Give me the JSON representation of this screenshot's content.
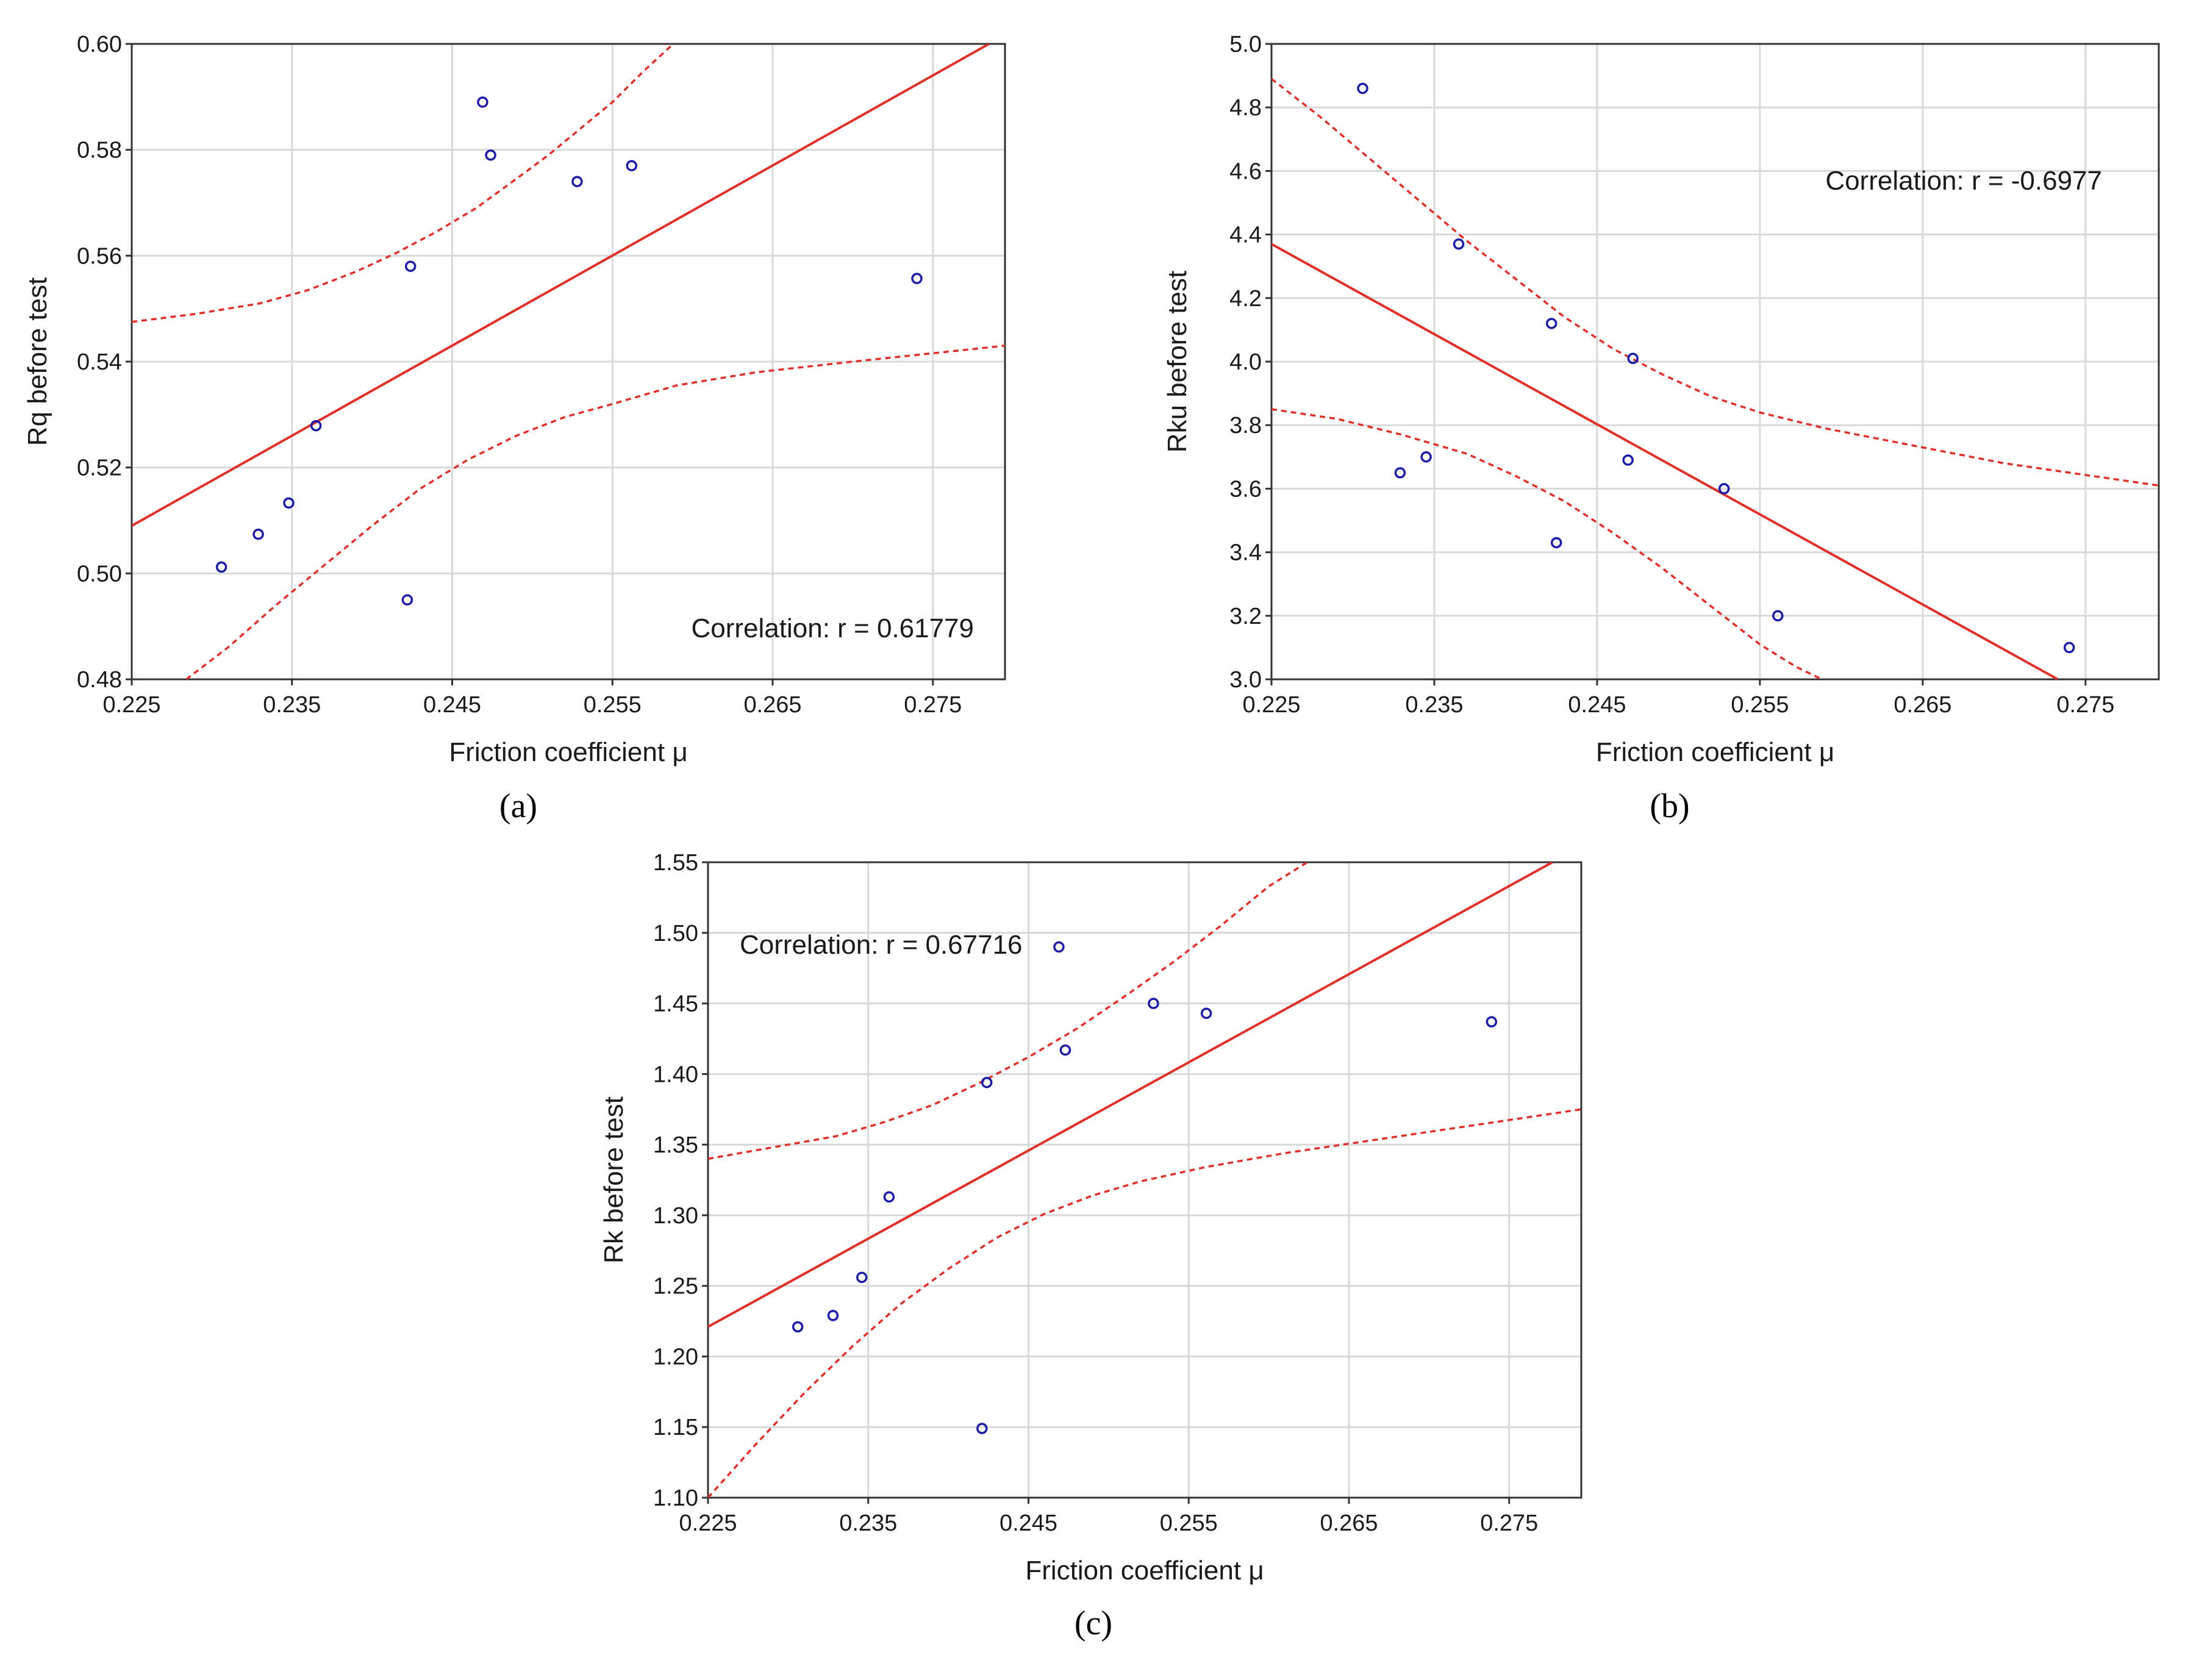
{
  "figure": {
    "colors": {
      "fit_line": "#e0302a",
      "points": "#1c1ca8",
      "grid": "#d9d9d9",
      "frame": "#333333"
    }
  },
  "chart_data": [
    {
      "id": "a",
      "type": "scatter",
      "caption": "(a)",
      "xlabel": "Friction coefficient μ",
      "ylabel": "Rq before test",
      "annotation": "Correlation: r = 0.61779",
      "xlim": [
        0.225,
        0.2795
      ],
      "ylim": [
        0.48,
        0.6
      ],
      "xticks": [
        0.225,
        0.235,
        0.245,
        0.255,
        0.265,
        0.275
      ],
      "xtick_labels": [
        "0.225",
        "0.235",
        "0.245",
        "0.255",
        "0.265",
        "0.275"
      ],
      "yticks": [
        0.48,
        0.5,
        0.52,
        0.54,
        0.56,
        0.58,
        0.6
      ],
      "ytick_labels": [
        "0.48",
        "0.50",
        "0.52",
        "0.54",
        "0.56",
        "0.58",
        "0.60"
      ],
      "grid": true,
      "points": {
        "x": [
          0.2306,
          0.2329,
          0.2348,
          0.2365,
          0.2422,
          0.2424,
          0.2469,
          0.2474,
          0.2528,
          0.2562,
          0.274
        ],
        "y": [
          0.5012,
          0.5074,
          0.5133,
          0.5279,
          0.495,
          0.558,
          0.589,
          0.579,
          0.574,
          0.577,
          0.5557
        ]
      },
      "fit_line": {
        "x": [
          0.225,
          0.2785
        ],
        "y": [
          0.509,
          0.6
        ]
      },
      "confidence_upper": {
        "x": [
          0.225,
          0.229,
          0.233,
          0.236,
          0.239,
          0.2415,
          0.244,
          0.2465,
          0.249,
          0.251,
          0.253,
          0.255,
          0.257,
          0.2588
        ],
        "y": [
          0.5475,
          0.549,
          0.551,
          0.5535,
          0.557,
          0.5605,
          0.5645,
          0.569,
          0.5745,
          0.579,
          0.584,
          0.589,
          0.595,
          0.6
        ]
      },
      "confidence_lower": {
        "x": [
          0.2284,
          0.231,
          0.234,
          0.237,
          0.24,
          0.243,
          0.246,
          0.249,
          0.252,
          0.255,
          0.259,
          0.264,
          0.27,
          0.2795
        ],
        "y": [
          0.48,
          0.486,
          0.494,
          0.5015,
          0.509,
          0.516,
          0.5215,
          0.526,
          0.5295,
          0.532,
          0.5355,
          0.538,
          0.54,
          0.543
        ]
      }
    },
    {
      "id": "b",
      "type": "scatter",
      "caption": "(b)",
      "xlabel": "Friction coefficient μ",
      "ylabel": "Rku before test",
      "annotation": "Correlation: r = -0.6977",
      "xlim": [
        0.225,
        0.2795
      ],
      "ylim": [
        3.0,
        5.0
      ],
      "xticks": [
        0.225,
        0.235,
        0.245,
        0.255,
        0.265,
        0.275
      ],
      "xtick_labels": [
        "0.225",
        "0.235",
        "0.245",
        "0.255",
        "0.265",
        "0.275"
      ],
      "yticks": [
        3.0,
        3.2,
        3.4,
        3.6,
        3.8,
        4.0,
        4.2,
        4.4,
        4.6,
        4.8,
        5.0
      ],
      "ytick_labels": [
        "3.0",
        "3.2",
        "3.4",
        "3.6",
        "3.8",
        "4.0",
        "4.2",
        "4.4",
        "4.6",
        "4.8",
        "5.0"
      ],
      "grid": true,
      "points": {
        "x": [
          0.2306,
          0.2329,
          0.2345,
          0.2365,
          0.2422,
          0.2425,
          0.2469,
          0.2472,
          0.2528,
          0.2561,
          0.274
        ],
        "y": [
          4.86,
          3.65,
          3.7,
          4.37,
          4.12,
          3.43,
          3.69,
          4.01,
          3.6,
          3.2,
          3.1
        ]
      },
      "fit_line": {
        "x": [
          0.225,
          0.2733
        ],
        "y": [
          4.37,
          3.0
        ]
      },
      "confidence_upper": {
        "x": [
          0.225,
          0.228,
          0.231,
          0.234,
          0.237,
          0.24,
          0.243,
          0.246,
          0.249,
          0.252,
          0.255,
          0.259,
          0.264,
          0.27,
          0.2795
        ],
        "y": [
          4.89,
          4.77,
          4.64,
          4.51,
          4.38,
          4.26,
          4.14,
          4.04,
          3.96,
          3.89,
          3.84,
          3.79,
          3.74,
          3.68,
          3.61
        ]
      },
      "confidence_lower": {
        "x": [
          0.225,
          0.229,
          0.233,
          0.237,
          0.24,
          0.243,
          0.246,
          0.249,
          0.252,
          0.255,
          0.2572,
          0.2588
        ],
        "y": [
          3.85,
          3.82,
          3.77,
          3.71,
          3.64,
          3.56,
          3.46,
          3.35,
          3.23,
          3.11,
          3.04,
          3.0
        ]
      }
    },
    {
      "id": "c",
      "type": "scatter",
      "caption": "(c)",
      "xlabel": "Friction coefficient μ",
      "ylabel": "Rk before test",
      "annotation": "Correlation: r = 0.67716",
      "xlim": [
        0.225,
        0.2795
      ],
      "ylim": [
        1.1,
        1.55
      ],
      "xticks": [
        0.225,
        0.235,
        0.245,
        0.255,
        0.265,
        0.275
      ],
      "xtick_labels": [
        "0.225",
        "0.235",
        "0.245",
        "0.255",
        "0.265",
        "0.275"
      ],
      "yticks": [
        1.1,
        1.15,
        1.2,
        1.25,
        1.3,
        1.35,
        1.4,
        1.45,
        1.5,
        1.55
      ],
      "ytick_labels": [
        "1.10",
        "1.15",
        "1.20",
        "1.25",
        "1.30",
        "1.35",
        "1.40",
        "1.45",
        "1.50",
        "1.55"
      ],
      "grid": true,
      "points": {
        "x": [
          0.2306,
          0.2328,
          0.2346,
          0.2363,
          0.2421,
          0.2424,
          0.2469,
          0.2473,
          0.2528,
          0.2561,
          0.2739
        ],
        "y": [
          1.221,
          1.229,
          1.256,
          1.313,
          1.149,
          1.394,
          1.49,
          1.417,
          1.45,
          1.443,
          1.437
        ]
      },
      "fit_line": {
        "x": [
          0.225,
          0.2777
        ],
        "y": [
          1.221,
          1.55
        ]
      },
      "confidence_upper": {
        "x": [
          0.225,
          0.229,
          0.233,
          0.236,
          0.239,
          0.242,
          0.245,
          0.248,
          0.251,
          0.254,
          0.257,
          0.26,
          0.2624
        ],
        "y": [
          1.34,
          1.348,
          1.356,
          1.366,
          1.378,
          1.394,
          1.412,
          1.432,
          1.455,
          1.479,
          1.505,
          1.533,
          1.55
        ]
      },
      "confidence_lower": {
        "x": [
          0.225,
          0.228,
          0.231,
          0.234,
          0.237,
          0.24,
          0.243,
          0.246,
          0.249,
          0.252,
          0.256,
          0.261,
          0.267,
          0.2795
        ],
        "y": [
          1.1,
          1.138,
          1.174,
          1.207,
          1.237,
          1.262,
          1.284,
          1.301,
          1.314,
          1.324,
          1.334,
          1.344,
          1.354,
          1.375
        ]
      }
    }
  ]
}
